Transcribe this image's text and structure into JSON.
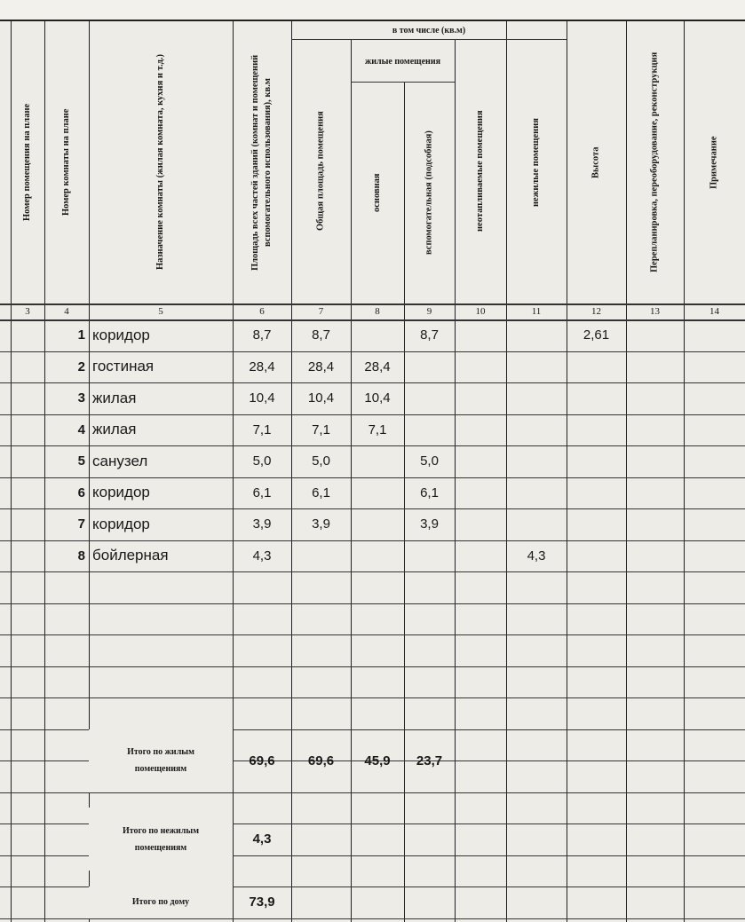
{
  "header": {
    "group_label": "в том числе (кв.м)",
    "living_group_label": "жилые помещения",
    "columns": [
      {
        "num": "3",
        "label": "Номер помещения на плане"
      },
      {
        "num": "4",
        "label": "Номер комнаты на плане"
      },
      {
        "num": "5",
        "label": "Назначение комнаты (жилая комната, кухня и т.д.)"
      },
      {
        "num": "6",
        "label": "Площадь всех частей зданий (комнат и помещений вспомогательного использования), кв.м"
      },
      {
        "num": "7",
        "label": "Общая площадь помещения"
      },
      {
        "num": "8",
        "label": "основная"
      },
      {
        "num": "9",
        "label": "вспомогательная (подсобная)"
      },
      {
        "num": "10",
        "label": "неотапливаемые помещения"
      },
      {
        "num": "11",
        "label": "нежилые помещения"
      },
      {
        "num": "12",
        "label": "Высота"
      },
      {
        "num": "13",
        "label": "Перепланировка, переоборудование, реконструкция"
      },
      {
        "num": "14",
        "label": "Примечание"
      }
    ]
  },
  "rows": [
    {
      "n": "1",
      "name": "коридор",
      "c6": "8,7",
      "c7": "8,7",
      "c8": "",
      "c9": "8,7",
      "c11": "",
      "c12": "2,61"
    },
    {
      "n": "2",
      "name": "гостиная",
      "c6": "28,4",
      "c7": "28,4",
      "c8": "28,4",
      "c9": "",
      "c11": "",
      "c12": ""
    },
    {
      "n": "3",
      "name": "жилая",
      "c6": "10,4",
      "c7": "10,4",
      "c8": "10,4",
      "c9": "",
      "c11": "",
      "c12": ""
    },
    {
      "n": "4",
      "name": "жилая",
      "c6": "7,1",
      "c7": "7,1",
      "c8": "7,1",
      "c9": "",
      "c11": "",
      "c12": ""
    },
    {
      "n": "5",
      "name": "санузел",
      "c6": "5,0",
      "c7": "5,0",
      "c8": "",
      "c9": "5,0",
      "c11": "",
      "c12": ""
    },
    {
      "n": "6",
      "name": "коридор",
      "c6": "6,1",
      "c7": "6,1",
      "c8": "",
      "c9": "6,1",
      "c11": "",
      "c12": ""
    },
    {
      "n": "7",
      "name": "коридор",
      "c6": "3,9",
      "c7": "3,9",
      "c8": "",
      "c9": "3,9",
      "c11": "",
      "c12": ""
    },
    {
      "n": "8",
      "name": "бойлерная",
      "c6": "4,3",
      "c7": "",
      "c8": "",
      "c9": "",
      "c11": "4,3",
      "c12": ""
    }
  ],
  "totals": {
    "living": {
      "label": "Итого по жилым помещениям",
      "c6": "69,6",
      "c7": "69,6",
      "c8": "45,9",
      "c9": "23,7"
    },
    "nonliving": {
      "label": "Итого по нежилым помещениям",
      "c6": "4,3"
    },
    "house": {
      "label": "Итого по дому",
      "c6": "73,9"
    }
  }
}
